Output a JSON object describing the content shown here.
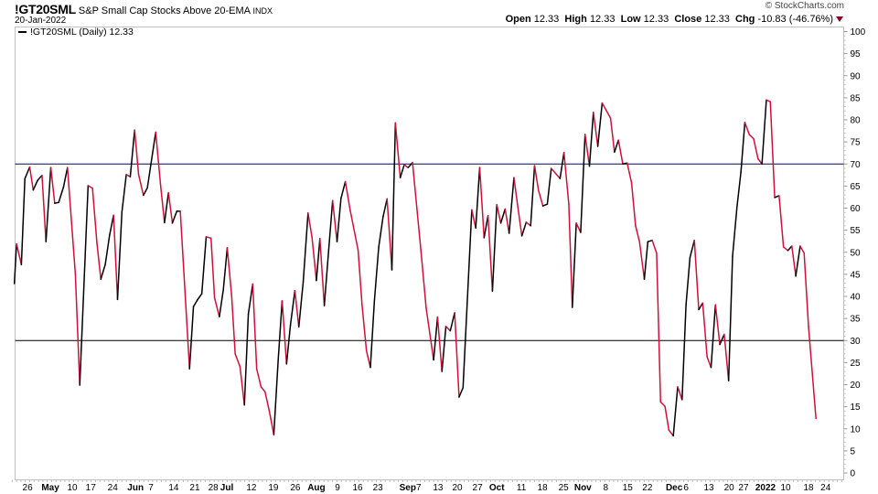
{
  "header": {
    "symbol": "!GT20SML",
    "name": "S&P Small Cap Stocks Above 20-EMA",
    "exchange": "INDX",
    "date": "20-Jan-2022",
    "credit": "© StockCharts.com",
    "open_label": "Open",
    "open": "12.33",
    "high_label": "High",
    "high": "12.33",
    "low_label": "Low",
    "low": "12.33",
    "close_label": "Close",
    "close": "12.33",
    "chg_label": "Chg",
    "chg": "-10.83 (-46.76%)",
    "chg_icon": "down-triangle-icon"
  },
  "legend": {
    "label": "!GT20SML (Daily) 12.33"
  },
  "colors": {
    "up": "#000000",
    "down": "#d0103a",
    "ref_line_70": "#000080",
    "ref_line_30": "#000000",
    "grid_border": "#c0c0c0"
  },
  "chart_data": {
    "type": "line",
    "title": "!GT20SML S&P Small Cap Stocks Above 20-EMA",
    "xlabel": "",
    "ylabel": "",
    "x_unit": "trading days since start (Apr 2021)",
    "xlim": [
      0,
      189.3
    ],
    "ylim": [
      0,
      100
    ],
    "y_ticks": [
      0,
      5,
      10,
      15,
      20,
      25,
      30,
      35,
      40,
      45,
      50,
      55,
      60,
      65,
      70,
      75,
      80,
      85,
      90,
      95,
      100
    ],
    "reference_lines": [
      70,
      30
    ],
    "x_ticks": [
      {
        "t": 3.5,
        "label": "26",
        "bold": false
      },
      {
        "t": 8.7,
        "label": "May",
        "bold": true
      },
      {
        "t": 13.7,
        "label": "10",
        "bold": false
      },
      {
        "t": 17.9,
        "label": "17",
        "bold": false
      },
      {
        "t": 22.9,
        "label": "24",
        "bold": false
      },
      {
        "t": 28.1,
        "label": "Jun",
        "bold": true
      },
      {
        "t": 31.6,
        "label": "7",
        "bold": false
      },
      {
        "t": 36.8,
        "label": "14",
        "bold": false
      },
      {
        "t": 41.6,
        "label": "21",
        "bold": false
      },
      {
        "t": 45.8,
        "label": "28",
        "bold": false
      },
      {
        "t": 48.9,
        "label": "Jul",
        "bold": true
      },
      {
        "t": 54.5,
        "label": "12",
        "bold": false
      },
      {
        "t": 59.5,
        "label": "19",
        "bold": false
      },
      {
        "t": 64.5,
        "label": "26",
        "bold": false
      },
      {
        "t": 69.3,
        "label": "Aug",
        "bold": true
      },
      {
        "t": 74.1,
        "label": "9",
        "bold": false
      },
      {
        "t": 78.7,
        "label": "16",
        "bold": false
      },
      {
        "t": 83.3,
        "label": "23",
        "bold": false
      },
      {
        "t": 90.1,
        "label": "Sep",
        "bold": true
      },
      {
        "t": 92.6,
        "label": "7",
        "bold": false
      },
      {
        "t": 97,
        "label": "13",
        "bold": false
      },
      {
        "t": 101.4,
        "label": "20",
        "bold": false
      },
      {
        "t": 106,
        "label": "27",
        "bold": false
      },
      {
        "t": 110.4,
        "label": "Oct",
        "bold": true
      },
      {
        "t": 116,
        "label": "11",
        "bold": false
      },
      {
        "t": 120.8,
        "label": "18",
        "bold": false
      },
      {
        "t": 125.6,
        "label": "25",
        "bold": false
      },
      {
        "t": 130,
        "label": "Nov",
        "bold": true
      },
      {
        "t": 135.2,
        "label": "8",
        "bold": false
      },
      {
        "t": 140.2,
        "label": "15",
        "bold": false
      },
      {
        "t": 144.7,
        "label": "22",
        "bold": false
      },
      {
        "t": 150.8,
        "label": "Dec",
        "bold": true
      },
      {
        "t": 153.5,
        "label": "6",
        "bold": false
      },
      {
        "t": 158.7,
        "label": "13",
        "bold": false
      },
      {
        "t": 163.3,
        "label": "20",
        "bold": false
      },
      {
        "t": 166.6,
        "label": "27",
        "bold": false
      },
      {
        "t": 171.6,
        "label": "2022",
        "bold": true
      },
      {
        "t": 176.2,
        "label": "10",
        "bold": false
      },
      {
        "t": 181.4,
        "label": "18",
        "bold": false
      },
      {
        "t": 185.3,
        "label": "24",
        "bold": false
      }
    ],
    "series": [
      {
        "name": "!GT20SML (Daily)",
        "last": 12.33,
        "points": [
          [
            0.5,
            42.9
          ],
          [
            1.0,
            51.9
          ],
          [
            2.1,
            47.2
          ],
          [
            2.9,
            66.7
          ],
          [
            4.0,
            69.3
          ],
          [
            4.8,
            64.1
          ],
          [
            5.8,
            66.3
          ],
          [
            6.8,
            67.4
          ],
          [
            7.7,
            52.4
          ],
          [
            8.8,
            69.2
          ],
          [
            9.7,
            61.1
          ],
          [
            10.6,
            61.3
          ],
          [
            11.7,
            64.8
          ],
          [
            12.6,
            69.2
          ],
          [
            14.4,
            45
          ],
          [
            15.4,
            19.9
          ],
          [
            17.3,
            65.1
          ],
          [
            18.3,
            64.5
          ],
          [
            19.3,
            52.2
          ],
          [
            20.2,
            43.9
          ],
          [
            21.2,
            47.2
          ],
          [
            22.2,
            53.9
          ],
          [
            23.1,
            58.4
          ],
          [
            24.0,
            39.3
          ],
          [
            25.0,
            59.1
          ],
          [
            26.0,
            67.6
          ],
          [
            26.9,
            67.1
          ],
          [
            27.9,
            77.7
          ],
          [
            28.8,
            67.6
          ],
          [
            29.9,
            62.9
          ],
          [
            30.8,
            64.6
          ],
          [
            32.7,
            77.2
          ],
          [
            33.8,
            65.3
          ],
          [
            34.7,
            56.7
          ],
          [
            35.6,
            63.5
          ],
          [
            36.5,
            56.6
          ],
          [
            37.5,
            59.3
          ],
          [
            38.3,
            59.3
          ],
          [
            40.4,
            23.6
          ],
          [
            41.3,
            37.7
          ],
          [
            42.2,
            39.2
          ],
          [
            43.2,
            40.6
          ],
          [
            44.2,
            53.5
          ],
          [
            45.3,
            53.2
          ],
          [
            46.1,
            39.7
          ],
          [
            47.2,
            35.4
          ],
          [
            48.1,
            41.5
          ],
          [
            49.0,
            51
          ],
          [
            50.0,
            40.1
          ],
          [
            50.8,
            27
          ],
          [
            51.9,
            24.1
          ],
          [
            52.9,
            15.4
          ],
          [
            53.8,
            36
          ],
          [
            54.8,
            42.8
          ],
          [
            55.7,
            23.6
          ],
          [
            56.7,
            19.5
          ],
          [
            57.6,
            18.4
          ],
          [
            58.6,
            13.9
          ],
          [
            59.6,
            8.7
          ],
          [
            60.6,
            25.6
          ],
          [
            61.5,
            39
          ],
          [
            62.5,
            24.7
          ],
          [
            63.4,
            33.6
          ],
          [
            64.4,
            41.3
          ],
          [
            65.3,
            33.1
          ],
          [
            66.3,
            43.3
          ],
          [
            67.4,
            58.9
          ],
          [
            68.3,
            53.4
          ],
          [
            69.3,
            43.6
          ],
          [
            70.1,
            53.1
          ],
          [
            71.1,
            37.9
          ],
          [
            72.1,
            50.5
          ],
          [
            73.0,
            61.7
          ],
          [
            74.0,
            52.4
          ],
          [
            74.9,
            62.2
          ],
          [
            75.9,
            66
          ],
          [
            77.0,
            59.5
          ],
          [
            78.8,
            50.5
          ],
          [
            79.7,
            38.1
          ],
          [
            80.7,
            27.7
          ],
          [
            81.6,
            23.9
          ],
          [
            82.5,
            38.8
          ],
          [
            83.5,
            51.2
          ],
          [
            84.5,
            58.1
          ],
          [
            85.4,
            62.1
          ],
          [
            86.5,
            46
          ],
          [
            87.3,
            79.3
          ],
          [
            88.4,
            66.9
          ],
          [
            89.3,
            69.8
          ],
          [
            90.2,
            69.2
          ],
          [
            91.2,
            70.3
          ],
          [
            93.1,
            50.5
          ],
          [
            94.3,
            37.4
          ],
          [
            96.0,
            25.6
          ],
          [
            96.9,
            35.3
          ],
          [
            97.9,
            23
          ],
          [
            98.8,
            33.2
          ],
          [
            99.8,
            32.2
          ],
          [
            100.8,
            36.3
          ],
          [
            101.8,
            17.2
          ],
          [
            102.7,
            19.3
          ],
          [
            104.7,
            59.6
          ],
          [
            105.6,
            55.5
          ],
          [
            106.5,
            69.2
          ],
          [
            107.5,
            53.3
          ],
          [
            108.4,
            58.3
          ],
          [
            109.4,
            41.2
          ],
          [
            110.4,
            60.8
          ],
          [
            111.3,
            56.6
          ],
          [
            112.3,
            59.8
          ],
          [
            113.2,
            54.3
          ],
          [
            114.3,
            66.9
          ],
          [
            115.1,
            60.9
          ],
          [
            116.1,
            53.7
          ],
          [
            117.1,
            56.8
          ],
          [
            118.1,
            56
          ],
          [
            119.0,
            69.6
          ],
          [
            119.9,
            64
          ],
          [
            120.9,
            60.5
          ],
          [
            121.9,
            60.9
          ],
          [
            122.8,
            69
          ],
          [
            124.8,
            66.7
          ],
          [
            125.7,
            72.6
          ],
          [
            126.8,
            60.9
          ],
          [
            127.6,
            37.5
          ],
          [
            128.5,
            56.6
          ],
          [
            129.5,
            54.5
          ],
          [
            130.5,
            76.7
          ],
          [
            131.5,
            69.5
          ],
          [
            132.4,
            81.7
          ],
          [
            133.4,
            74
          ],
          [
            134.4,
            83.8
          ],
          [
            136.3,
            80.4
          ],
          [
            137.2,
            72.7
          ],
          [
            138.1,
            75.4
          ],
          [
            139.1,
            70
          ],
          [
            140.1,
            70.2
          ],
          [
            141.1,
            65.7
          ],
          [
            142.0,
            56
          ],
          [
            142.9,
            52.4
          ],
          [
            144.0,
            43.9
          ],
          [
            144.8,
            52.4
          ],
          [
            145.8,
            52.7
          ],
          [
            146.8,
            49.8
          ],
          [
            147.7,
            16.1
          ],
          [
            148.7,
            15.1
          ],
          [
            149.6,
            9.7
          ],
          [
            150.6,
            8.4
          ],
          [
            151.6,
            19.5
          ],
          [
            152.6,
            16.6
          ],
          [
            153.5,
            38.1
          ],
          [
            154.4,
            48.8
          ],
          [
            155.4,
            52.7
          ],
          [
            156.4,
            37
          ],
          [
            157.3,
            38.5
          ],
          [
            158.3,
            26.3
          ],
          [
            159.2,
            23.9
          ],
          [
            160.2,
            38.1
          ],
          [
            161.2,
            29.1
          ],
          [
            162.2,
            31.4
          ],
          [
            163.2,
            20.9
          ],
          [
            164.1,
            49.1
          ],
          [
            165.1,
            60.2
          ],
          [
            166.0,
            68.1
          ],
          [
            166.9,
            79.4
          ],
          [
            167.9,
            76.7
          ],
          [
            168.9,
            75.7
          ],
          [
            169.9,
            71.2
          ],
          [
            170.8,
            70
          ],
          [
            171.8,
            84.5
          ],
          [
            172.7,
            84.1
          ],
          [
            173.7,
            62.4
          ],
          [
            174.7,
            62.8
          ],
          [
            175.7,
            51.2
          ],
          [
            176.7,
            50.4
          ],
          [
            177.6,
            51.4
          ],
          [
            178.5,
            44.6
          ],
          [
            179.5,
            51.4
          ],
          [
            180.4,
            49.8
          ],
          [
            181.4,
            33.2
          ],
          [
            183.1,
            12.33
          ]
        ]
      }
    ]
  }
}
